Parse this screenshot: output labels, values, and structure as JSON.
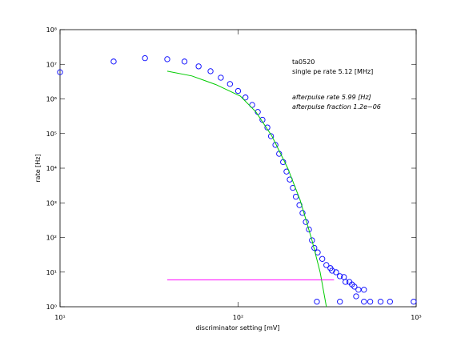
{
  "chart_data": {
    "type": "scatter",
    "xlabel": "discriminator setting [mV]",
    "ylabel": "rate [Hz]",
    "xscale": "log",
    "yscale": "log",
    "xlim": [
      10,
      1000
    ],
    "ylim": [
      1,
      100000000
    ],
    "xticks": [
      {
        "value": 10,
        "label": "10¹"
      },
      {
        "value": 100,
        "label": "10²"
      },
      {
        "value": 1000,
        "label": "10³"
      }
    ],
    "yticks": [
      {
        "value": 1,
        "label": "10⁰"
      },
      {
        "value": 10,
        "label": "10¹"
      },
      {
        "value": 100,
        "label": "10²"
      },
      {
        "value": 1000,
        "label": "10³"
      },
      {
        "value": 10000,
        "label": "10⁴"
      },
      {
        "value": 100000,
        "label": "10⁵"
      },
      {
        "value": 1000000,
        "label": "10⁶"
      },
      {
        "value": 10000000,
        "label": "10⁷"
      },
      {
        "value": 100000000,
        "label": "10⁸"
      }
    ],
    "annotations": [
      "ta0520",
      "single pe rate 5.12 [MHz]",
      "afterpulse rate 5.99 [Hz]",
      "afterpulse fraction 1.2e−06"
    ],
    "series": [
      {
        "kind": "scatter",
        "color": "#0000ff",
        "x": [
          10,
          20,
          30,
          40,
          50,
          60,
          70,
          80,
          90,
          100,
          110,
          120,
          129,
          137,
          146,
          153,
          162,
          170,
          179,
          187,
          195,
          203,
          211,
          221,
          230,
          240,
          250,
          260,
          268,
          280,
          297,
          313,
          330,
          337,
          355,
          373,
          393,
          401,
          422,
          436,
          450,
          460,
          474,
          509,
          277,
          373,
          509,
          552,
          631,
          713,
          968
        ],
        "values": [
          5900000,
          12000000,
          15000000,
          14000000,
          12000000,
          8700000,
          6300000,
          4100000,
          2700000,
          1700000,
          1100000,
          670000,
          420000,
          250000,
          150000,
          84000,
          47000,
          26000,
          15000,
          8000,
          4700,
          2700,
          1500,
          860,
          510,
          280,
          170,
          83,
          50,
          37,
          24,
          16,
          13,
          11,
          9.9,
          7.6,
          7.2,
          5.2,
          5.2,
          4.4,
          3.8,
          2.0,
          3.1,
          3.1,
          1.4,
          1.4,
          1.4,
          1.4,
          1.4,
          1.4,
          1.4
        ]
      },
      {
        "kind": "line",
        "color": "#00cc00",
        "x": [
          40,
          55,
          75,
          103,
          126,
          155,
          190,
          223,
          260,
          289,
          313
        ],
        "values": [
          6300000,
          4600000,
          2600000,
          1200000,
          420000,
          84000,
          10000,
          1200,
          83,
          9.9,
          1
        ]
      },
      {
        "kind": "line",
        "color": "#ff00ff",
        "x": [
          40,
          346
        ],
        "values": [
          5.99,
          5.99
        ]
      }
    ]
  }
}
